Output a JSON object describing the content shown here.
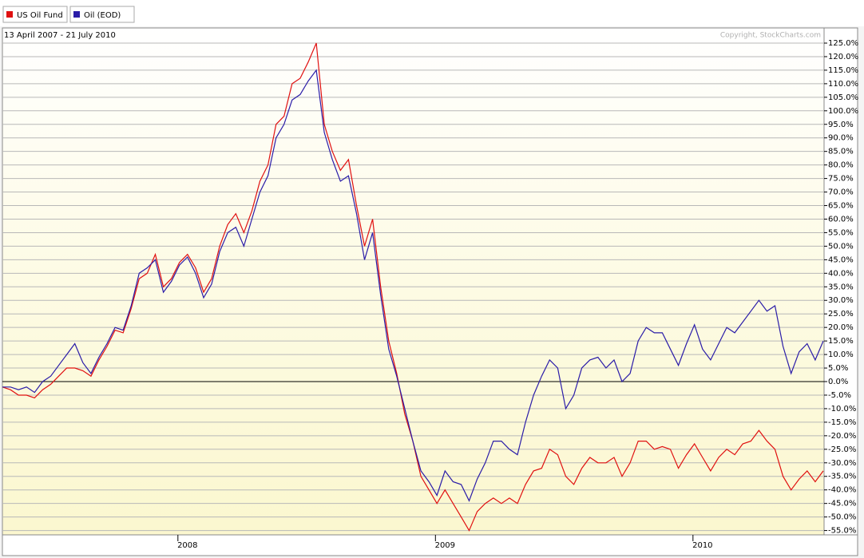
{
  "chart_data": {
    "type": "line",
    "subtitle": "13 April 2007 - 21 July 2010",
    "annotation": "Copyright, StockCharts.com",
    "categories": [
      null,
      null,
      null,
      null,
      null,
      null,
      null,
      null,
      null,
      null,
      null,
      null,
      null,
      null,
      null,
      null,
      null,
      null,
      null,
      null,
      null,
      null,
      null,
      "2008",
      null,
      null,
      null,
      null,
      null,
      null,
      null,
      null,
      null,
      null,
      null,
      null,
      null,
      null,
      null,
      null,
      null,
      null,
      null,
      null,
      null,
      null,
      null,
      null,
      null,
      null,
      null,
      null,
      null,
      null,
      null,
      "2009",
      null,
      null,
      null,
      null,
      null,
      null,
      null,
      null,
      null,
      null,
      null,
      null,
      null,
      null,
      null,
      null,
      null,
      null,
      null,
      null,
      null,
      null,
      null,
      null,
      null,
      null,
      null,
      null,
      null,
      null,
      null,
      "2010",
      null,
      null,
      null,
      null,
      null,
      null,
      null,
      null,
      null,
      null,
      null,
      null,
      null,
      null,
      null
    ],
    "series": [
      {
        "name": "US Oil Fund",
        "color": "#e01010",
        "values": [
          -2,
          -3,
          -5,
          -5,
          -6,
          -3,
          -1,
          2,
          5,
          5,
          4,
          2,
          8,
          13,
          19,
          18,
          27,
          38,
          40,
          47,
          35,
          38,
          44,
          47,
          42,
          33,
          38,
          50,
          58,
          62,
          55,
          63,
          74,
          80,
          95,
          98,
          110,
          112,
          118,
          125,
          95,
          85,
          78,
          82,
          65,
          50,
          60,
          35,
          15,
          3,
          -12,
          -22,
          -35,
          -40,
          -45,
          -40,
          -45,
          -50,
          -55,
          -48,
          -45,
          -43,
          -45,
          -43,
          -45,
          -38,
          -33,
          -32,
          -25,
          -27,
          -35,
          -38,
          -32,
          -28,
          -30,
          -30,
          -28,
          -35,
          -30,
          -22,
          -22,
          -25,
          -24,
          -25,
          -32,
          -27,
          -23,
          -28,
          -33,
          -28,
          -25,
          -27,
          -23,
          -22,
          -18,
          -22,
          -25,
          -35,
          -40,
          -36,
          -33,
          -37,
          -33
        ]
      },
      {
        "name": "Oil (EOD)",
        "color": "#2a1ca8",
        "values": [
          -2,
          -2,
          -3,
          -2,
          -4,
          0,
          2,
          6,
          10,
          14,
          7,
          3,
          9,
          14,
          20,
          19,
          28,
          40,
          42,
          45,
          33,
          37,
          43,
          46,
          40,
          31,
          36,
          48,
          55,
          57,
          50,
          60,
          70,
          76,
          90,
          95,
          104,
          106,
          111,
          115,
          92,
          82,
          74,
          76,
          62,
          45,
          55,
          32,
          12,
          2,
          -10,
          -22,
          -33,
          -37,
          -42,
          -33,
          -37,
          -38,
          -44,
          -36,
          -30,
          -22,
          -22,
          -25,
          -27,
          -15,
          -5,
          2,
          8,
          5,
          -10,
          -5,
          5,
          8,
          9,
          5,
          8,
          0,
          3,
          15,
          20,
          18,
          18,
          12,
          6,
          14,
          21,
          12,
          8,
          14,
          20,
          18,
          22,
          26,
          30,
          26,
          28,
          13,
          3,
          11,
          14,
          8,
          15
        ]
      }
    ],
    "ylim": [
      -56.6,
      130.6
    ],
    "yticks": [
      {
        "value": 125,
        "label": "125.0%"
      },
      {
        "value": 120,
        "label": "120.0%"
      },
      {
        "value": 115,
        "label": "115.0%"
      },
      {
        "value": 110,
        "label": "110.0%"
      },
      {
        "value": 105,
        "label": "105.0%"
      },
      {
        "value": 100,
        "label": "100.0%"
      },
      {
        "value": 95,
        "label": "95.0%"
      },
      {
        "value": 90,
        "label": "90.0%"
      },
      {
        "value": 85,
        "label": "85.0%"
      },
      {
        "value": 80,
        "label": "80.0%"
      },
      {
        "value": 75,
        "label": "75.0%"
      },
      {
        "value": 70,
        "label": "70.0%"
      },
      {
        "value": 65,
        "label": "65.0%"
      },
      {
        "value": 60,
        "label": "60.0%"
      },
      {
        "value": 55,
        "label": "55.0%"
      },
      {
        "value": 50,
        "label": "50.0%"
      },
      {
        "value": 45,
        "label": "45.0%"
      },
      {
        "value": 40,
        "label": "40.0%"
      },
      {
        "value": 35,
        "label": "35.0%"
      },
      {
        "value": 30,
        "label": "30.0%"
      },
      {
        "value": 25,
        "label": "25.0%"
      },
      {
        "value": 20,
        "label": "20.0%"
      },
      {
        "value": 15,
        "label": "15.0%"
      },
      {
        "value": 10,
        "label": "10.0%"
      },
      {
        "value": 5,
        "label": "5.0%"
      },
      {
        "value": 0,
        "label": "0.0%"
      },
      {
        "value": -5,
        "label": "-5.0%"
      },
      {
        "value": -10,
        "label": "-10.0%"
      },
      {
        "value": -15,
        "label": "-15.0%"
      },
      {
        "value": -20,
        "label": "-20.0%"
      },
      {
        "value": -25,
        "label": "-25.0%"
      },
      {
        "value": -30,
        "label": "-30.0%"
      },
      {
        "value": -35,
        "label": "-35.0%"
      },
      {
        "value": -40,
        "label": "-40.0%"
      },
      {
        "value": -45,
        "label": "-45.0%"
      },
      {
        "value": -50,
        "label": "-50.0%"
      },
      {
        "value": -55,
        "label": "-55.0%"
      }
    ],
    "grid": true,
    "legend_position": "top-left"
  }
}
